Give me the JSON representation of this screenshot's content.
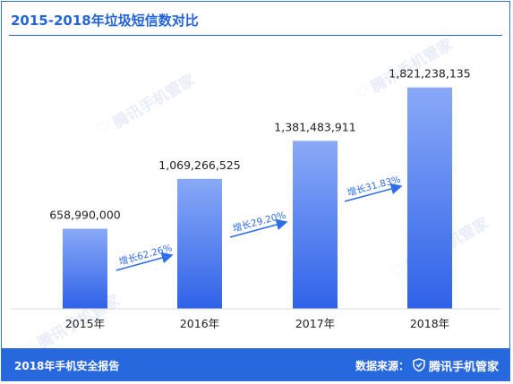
{
  "header": {
    "title": "2015-2018年垃圾短信数对比"
  },
  "footer": {
    "left_text": "2018年手机安全报告",
    "source_label": "数据来源：",
    "brand": "腾讯手机管家"
  },
  "watermark": {
    "text": "腾讯手机管家"
  },
  "chart_data": {
    "type": "bar",
    "title": "2015-2018年垃圾短信数对比",
    "xlabel": "",
    "ylabel": "",
    "categories": [
      "2015年",
      "2016年",
      "2017年",
      "2018年"
    ],
    "values": [
      658990000,
      1069266525,
      1381483911,
      1821238135
    ],
    "value_labels": [
      "658,990,000",
      "1,069,266,525",
      "1,381,483,911",
      "1,821,238,135"
    ],
    "growth_labels": [
      "增长62.26%",
      "增长29.20%",
      "增长31.83%"
    ],
    "ylim": [
      0,
      1900000000
    ],
    "grid": false,
    "colors": {
      "bar_top": "#89a9f7",
      "bar_bottom": "#2f62e8",
      "arrow": "#2f6ee8",
      "accent": "#2563d8"
    }
  }
}
